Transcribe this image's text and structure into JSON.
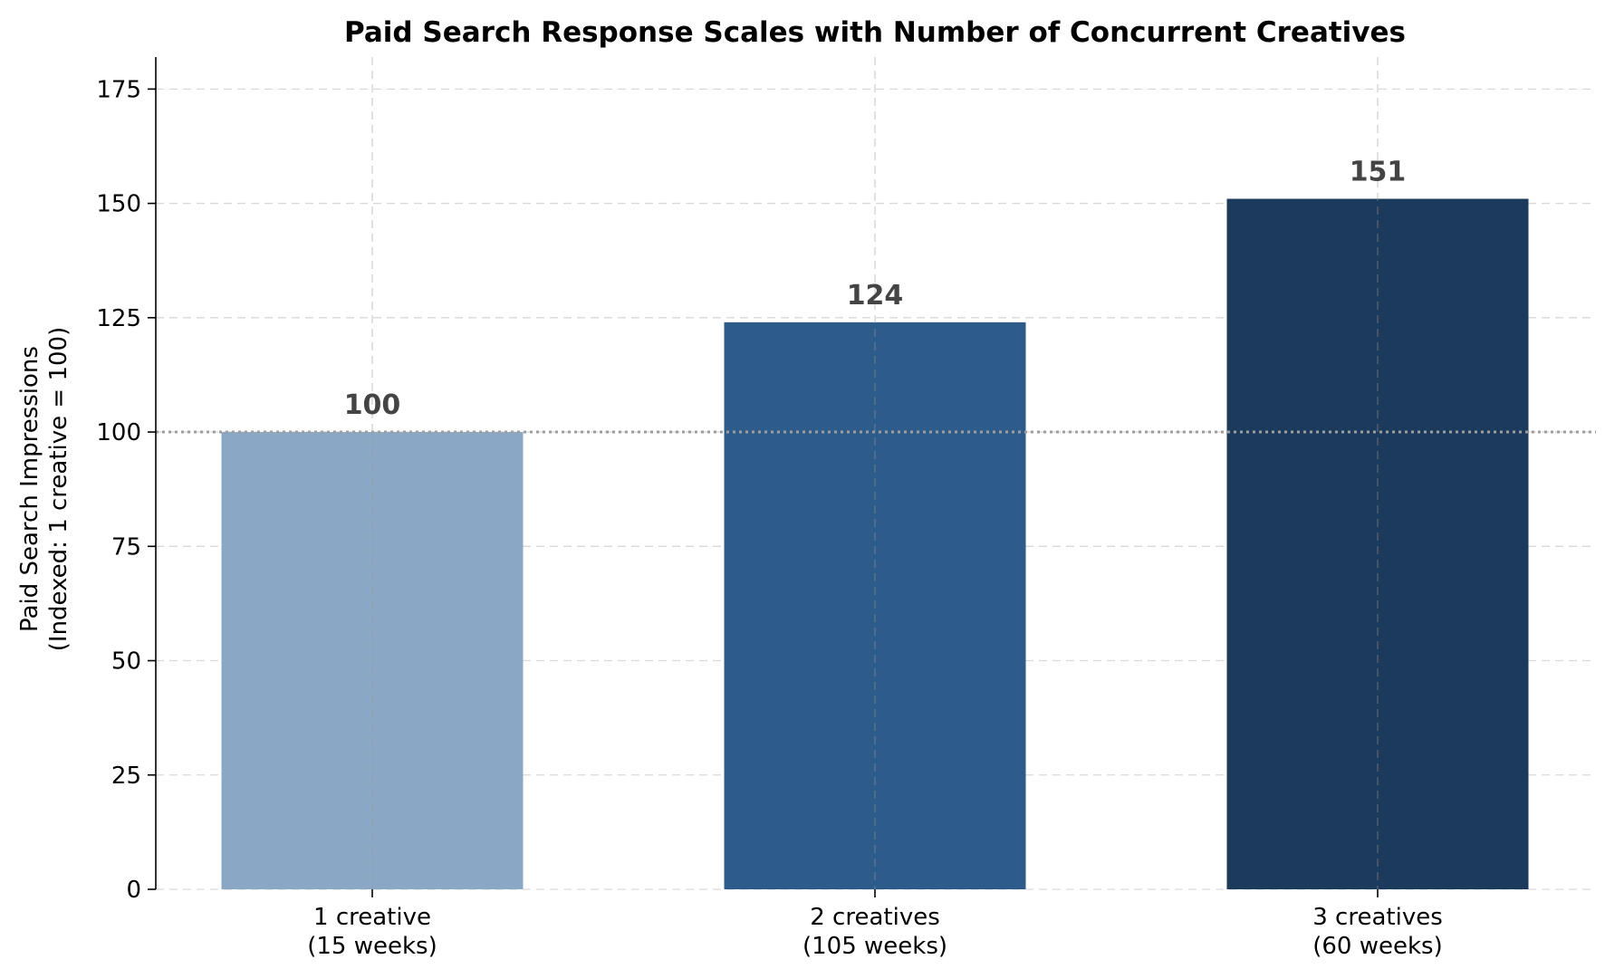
{
  "chart_data": {
    "type": "bar",
    "title": "Paid Search Response Scales with Number of Concurrent Creatives",
    "xlabel": "",
    "ylabel": [
      "Paid Search Impressions",
      "(Indexed: 1 creative = 100)"
    ],
    "categories": [
      [
        "1 creative",
        "(15 weeks)"
      ],
      [
        "2 creatives",
        "(105 weeks)"
      ],
      [
        "3 creatives",
        "(60 weeks)"
      ]
    ],
    "values": [
      100,
      124,
      151
    ],
    "data_labels": [
      "100",
      "124",
      "151"
    ],
    "colors": [
      "#8aa8c6",
      "#2e5c8a",
      "#1c3a5c"
    ],
    "ylim": [
      0,
      182
    ],
    "yticks": [
      0,
      25,
      50,
      75,
      100,
      125,
      150,
      175
    ],
    "reference_line": 100,
    "grid": true,
    "legend": "none"
  }
}
